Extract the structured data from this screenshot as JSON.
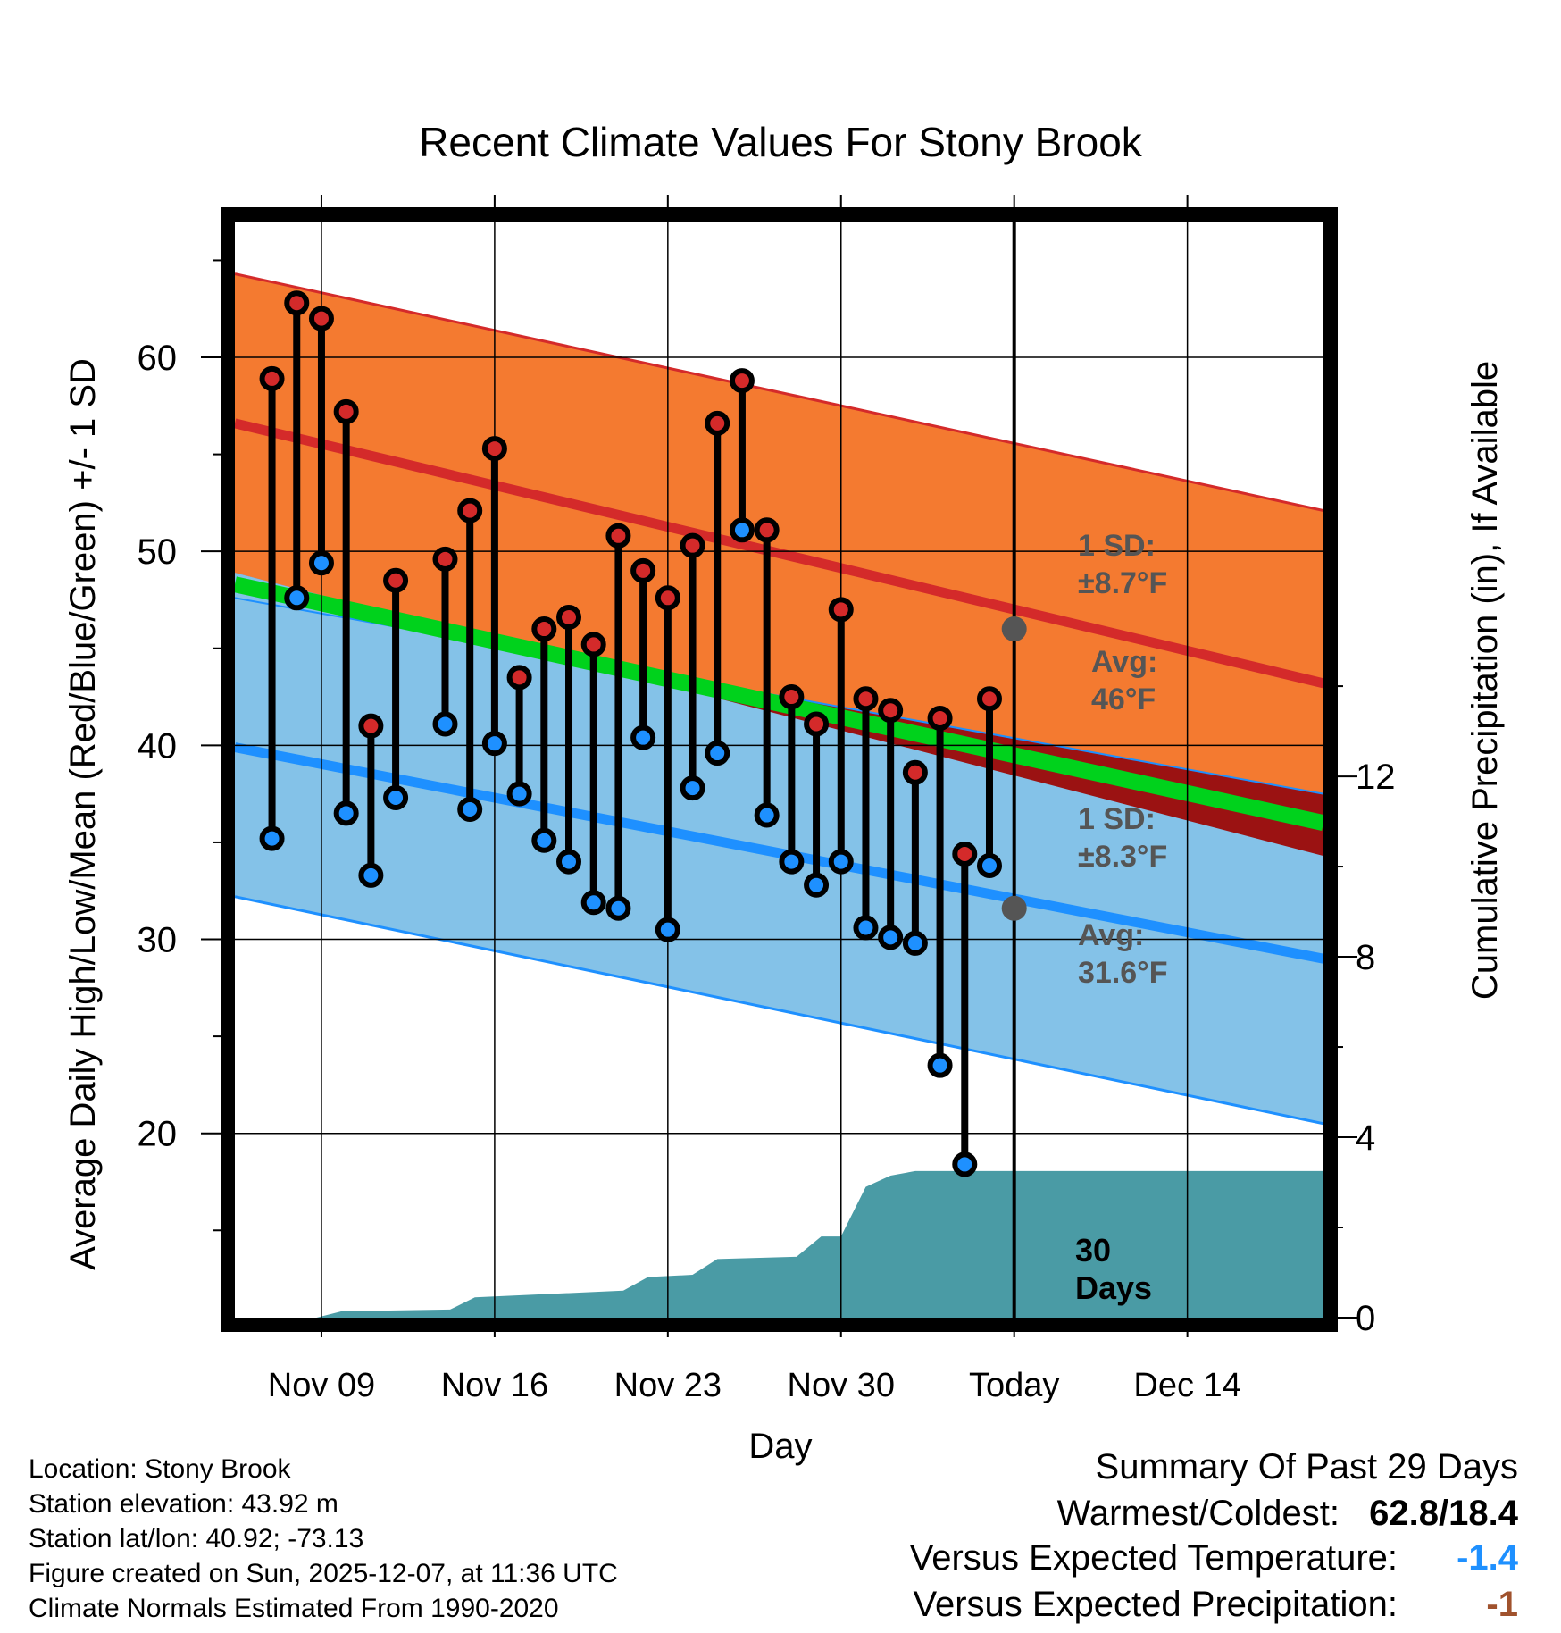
{
  "chart_data": {
    "type": "line",
    "title": "Recent Climate Values For Stony Brook",
    "xlabel": "Day",
    "ylabel_left": "Average Daily High/Low/Mean (Red/Blue/Green) +/- 1 SD",
    "ylabel_right": "Cumulative Precipitation (in), If Available",
    "ylim": [
      10.5,
      67
    ],
    "y2lim": [
      0,
      24.3
    ],
    "xlim": [
      -3.5,
      40.5
    ],
    "yticks": [
      20,
      30,
      40,
      50,
      60
    ],
    "y2ticks": [
      0,
      4,
      8,
      12
    ],
    "xticks": [
      {
        "day": 0,
        "label": "Nov 09"
      },
      {
        "day": 7,
        "label": "Nov 16"
      },
      {
        "day": 14,
        "label": "Nov 23"
      },
      {
        "day": 21,
        "label": "Nov 30"
      },
      {
        "day": 28,
        "label": "Today"
      },
      {
        "day": 35,
        "label": "Dec 14"
      }
    ],
    "normals": {
      "high_avg": [
        56.6,
        43.2
      ],
      "high_sd_upper": [
        64.3,
        52.1
      ],
      "low_avg": [
        39.9,
        29.0
      ],
      "low_sd_lower": [
        32.2,
        20.5
      ],
      "mean_avg": [
        48.3,
        36.0
      ],
      "high_sd_label": "1 SD: ±8.7°F",
      "high_avg_label": "Avg: 46°F",
      "low_sd_label": "1 SD: ±8.3°F",
      "low_avg_label": "Avg: 31.6°F",
      "today_high_avg": 46.0,
      "today_low_avg": 31.6
    },
    "observations": {
      "days": [
        -2,
        -1,
        0,
        1,
        2,
        3,
        5,
        6,
        7,
        8,
        9,
        10,
        11,
        12,
        13,
        14,
        15,
        16,
        17,
        18,
        19,
        20,
        21,
        22,
        23,
        24,
        25,
        26,
        27
      ],
      "highs": [
        58.9,
        62.8,
        62.0,
        57.2,
        41.0,
        48.5,
        49.6,
        52.1,
        55.3,
        43.5,
        46.0,
        46.6,
        45.2,
        50.8,
        49.0,
        47.6,
        50.3,
        56.6,
        58.8,
        51.1,
        42.5,
        41.1,
        47.0,
        42.4,
        41.8,
        38.6,
        41.4,
        34.4,
        42.4
      ],
      "lows": [
        35.2,
        47.6,
        49.4,
        36.5,
        33.3,
        37.3,
        41.1,
        36.7,
        40.1,
        37.5,
        35.1,
        34.0,
        31.9,
        31.6,
        40.4,
        30.5,
        37.8,
        39.6,
        51.1,
        36.4,
        34.0,
        32.8,
        34.0,
        30.6,
        30.1,
        29.8,
        23.5,
        18.4,
        33.8
      ]
    },
    "precipitation": {
      "label": "30 Days",
      "days": [
        -0.2,
        0.8,
        5.2,
        6.2,
        12.2,
        13.2,
        15.0,
        16.0,
        19.2,
        20.2,
        21.0,
        22.0,
        23.0,
        24.0,
        40.5
      ],
      "cumulative": [
        0,
        0.14,
        0.18,
        0.45,
        0.6,
        0.9,
        0.95,
        1.3,
        1.35,
        1.8,
        1.8,
        2.9,
        3.15,
        3.25,
        3.25
      ]
    },
    "colors": {
      "high_band": "#f47a30",
      "high_line": "#d42a2a",
      "low_band": "#84c2e8",
      "low_line": "#1e90ff",
      "mean_line": "#00d21c",
      "overlap": "#9b1212",
      "precip": "#4a9ba5",
      "stem": "#000000",
      "today_marker": "#555555",
      "annotation": "#555555"
    }
  },
  "info": {
    "location": "Location: Stony Brook",
    "elevation": "Station elevation: 43.92 m",
    "latlon": "Station lat/lon: 40.92; -73.13",
    "created": "Figure created on Sun, 2025-12-07, at 11:36 UTC",
    "normals": "Climate Normals Estimated From 1990-2020"
  },
  "summary": {
    "title": "Summary Of Past 29 Days",
    "warm_cold_label": "Warmest/Coldest:",
    "warm_cold_value": "62.8/18.4",
    "temp_label": "Versus Expected Temperature:",
    "temp_value": "-1.4",
    "temp_color": "#1e90ff",
    "precip_label": "Versus Expected Precipitation:",
    "precip_value": "-1",
    "precip_color": "#a0522d"
  }
}
